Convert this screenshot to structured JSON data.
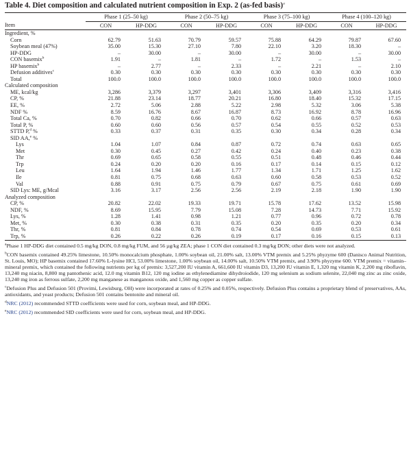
{
  "title": {
    "label": "Table 4.",
    "text": "Diet composition and calculated nutrient composition in Exp. 2 (as-fed basis)",
    "sup": "a"
  },
  "header": {
    "item": "Item",
    "phases": [
      "Phase 1 (25–50 kg)",
      "Phase 2 (50–75 kg)",
      "Phase 3 (75–100 kg)",
      "Phase 4 (100–120 kg)"
    ],
    "diet_con": "CON",
    "diet_hp": "HP-DDG"
  },
  "rows": [
    {
      "label": "Ingredient, %",
      "indent": 0,
      "values": []
    },
    {
      "label": "Corn",
      "indent": 1,
      "values": [
        "62.79",
        "51.63",
        "70.79",
        "59.57",
        "75.88",
        "64.29",
        "79.87",
        "67.60"
      ]
    },
    {
      "label": "Soybean meal (47%)",
      "indent": 1,
      "values": [
        "35.00",
        "15.30",
        "27.10",
        "7.80",
        "22.10",
        "3.20",
        "18.30",
        "–"
      ]
    },
    {
      "label": "HP-DDG",
      "indent": 1,
      "values": [
        "–",
        "30.00",
        "–",
        "30.00",
        "–",
        "30.00",
        "–",
        "30.00"
      ]
    },
    {
      "label": "CON basemix",
      "sup": "b",
      "indent": 1,
      "values": [
        "1.91",
        "–",
        "1.81",
        "–",
        "1.72",
        "–",
        "1.53",
        "–"
      ]
    },
    {
      "label": "HP basemix",
      "sup": "b",
      "indent": 1,
      "values": [
        "–",
        "2.77",
        "–",
        "2.33",
        "–",
        "2.21",
        "–",
        "2.10"
      ]
    },
    {
      "label": "Defusion additives",
      "sup": "c",
      "indent": 1,
      "values": [
        "0.30",
        "0.30",
        "0.30",
        "0.30",
        "0.30",
        "0.30",
        "0.30",
        "0.30"
      ]
    },
    {
      "label": "Total",
      "indent": 1,
      "values": [
        "100.0",
        "100.0",
        "100.0",
        "100.0",
        "100.0",
        "100.0",
        "100.0",
        "100.0"
      ]
    },
    {
      "label": "Calculated composition",
      "indent": 0,
      "values": []
    },
    {
      "label": "ME, kcal/kg",
      "indent": 1,
      "values": [
        "3,286",
        "3,379",
        "3,297",
        "3,401",
        "3,306",
        "3,409",
        "3,316",
        "3,416"
      ]
    },
    {
      "label": "CP, %",
      "indent": 1,
      "values": [
        "21.88",
        "23.14",
        "18.77",
        "20.21",
        "16.80",
        "18.40",
        "15.32",
        "17.15"
      ]
    },
    {
      "label": "EE, %",
      "indent": 1,
      "values": [
        "2.72",
        "5.06",
        "2.88",
        "5.22",
        "2.98",
        "5.32",
        "3.06",
        "5.38"
      ]
    },
    {
      "label": "NDF %",
      "indent": 1,
      "values": [
        "8.59",
        "16.76",
        "8.67",
        "16.87",
        "8.73",
        "16.92",
        "8.78",
        "16.96"
      ]
    },
    {
      "label": "Total Ca, %",
      "indent": 1,
      "values": [
        "0.70",
        "0.82",
        "0.66",
        "0.70",
        "0.62",
        "0.66",
        "0.57",
        "0.63"
      ]
    },
    {
      "label": "Total P, %",
      "indent": 1,
      "values": [
        "0.60",
        "0.60",
        "0.56",
        "0.57",
        "0.54",
        "0.55",
        "0.52",
        "0.53"
      ]
    },
    {
      "label": "STTD P,",
      "sup": "d",
      "label_tail": " %",
      "indent": 1,
      "values": [
        "0.33",
        "0.37",
        "0.31",
        "0.35",
        "0.30",
        "0.34",
        "0.28",
        "0.34"
      ]
    },
    {
      "label": "SID AA,",
      "sup": "e",
      "label_tail": " %",
      "indent": 1,
      "values": []
    },
    {
      "label": "Lys",
      "indent": 2,
      "values": [
        "1.04",
        "1.07",
        "0.84",
        "0.87",
        "0.72",
        "0.74",
        "0.63",
        "0.65"
      ]
    },
    {
      "label": "Met",
      "indent": 2,
      "values": [
        "0.30",
        "0.45",
        "0.27",
        "0.42",
        "0.24",
        "0.40",
        "0.23",
        "0.38"
      ]
    },
    {
      "label": "Thr",
      "indent": 2,
      "values": [
        "0.69",
        "0.65",
        "0.58",
        "0.55",
        "0.51",
        "0.48",
        "0.46",
        "0.44"
      ]
    },
    {
      "label": "Trp",
      "indent": 2,
      "values": [
        "0.24",
        "0.20",
        "0.20",
        "0.16",
        "0.17",
        "0.14",
        "0.15",
        "0.12"
      ]
    },
    {
      "label": "Leu",
      "indent": 2,
      "values": [
        "1.64",
        "1.94",
        "1.46",
        "1.77",
        "1.34",
        "1.71",
        "1.25",
        "1.62"
      ]
    },
    {
      "label": "Ile",
      "indent": 2,
      "values": [
        "0.81",
        "0.75",
        "0.68",
        "0.63",
        "0.60",
        "0.58",
        "0.53",
        "0.52"
      ]
    },
    {
      "label": "Val",
      "indent": 2,
      "values": [
        "0.88",
        "0.91",
        "0.75",
        "0.79",
        "0.67",
        "0.75",
        "0.61",
        "0.69"
      ]
    },
    {
      "label": "SID Lys: ME, g/Mcal",
      "indent": 1,
      "values": [
        "3.16",
        "3.17",
        "2.56",
        "2.56",
        "2.19",
        "2.18",
        "1.90",
        "1.90"
      ]
    },
    {
      "label": "Analyzed composition",
      "indent": 0,
      "values": []
    },
    {
      "label": "CP, %",
      "indent": 1,
      "values": [
        "20.82",
        "22.02",
        "19.33",
        "19.71",
        "15.78",
        "17.62",
        "13.52",
        "15.98"
      ]
    },
    {
      "label": "NDF, %",
      "indent": 1,
      "values": [
        "8.69",
        "15.95",
        "7.79",
        "15.08",
        "7.28",
        "14.73",
        "7.71",
        "15.92"
      ]
    },
    {
      "label": "Lys, %",
      "indent": 1,
      "values": [
        "1.28",
        "1.41",
        "0.98",
        "1.21",
        "0.77",
        "0.96",
        "0.72",
        "0.78"
      ]
    },
    {
      "label": "Met, %",
      "indent": 1,
      "values": [
        "0.30",
        "0.38",
        "0.31",
        "0.35",
        "0.20",
        "0.35",
        "0.20",
        "0.34"
      ]
    },
    {
      "label": "Thr, %",
      "indent": 1,
      "values": [
        "0.81",
        "0.84",
        "0.78",
        "0.74",
        "0.54",
        "0.69",
        "0.53",
        "0.61"
      ]
    },
    {
      "label": "Trp, %",
      "indent": 1,
      "values": [
        "0.26",
        "0.22",
        "0.26",
        "0.19",
        "0.17",
        "0.16",
        "0.15",
        "0.13"
      ]
    }
  ],
  "footnotes": [
    {
      "mark": "a",
      "text": "Phase 1 HP-DDG diet contained 0.5 mg/kg DON, 0.8 mg/kg FUM, and 56 µg/kg ZEA; phase 1 CON diet contained 0.3 mg/kg DON; other diets were not analyzed."
    },
    {
      "mark": "b",
      "text": "CON basemix contained 49.25% limestone, 10.50% monocalcium phosphate, 1.00% soybean oil, 21.00% salt, 13.00% VTM premix and 5.25% phyzyme 600 (Danisco Animal Nutrition, St. Louis, MO); HP basemix contained 17.60% L-lysine HCl, 53.00% limestone, 1.00% soybean oil, 14.00% salt, 10.50% VTM premix, and 3.90% phyzyme 600. VTM premix = vitamin–mineral premix, which contained the following nutrients per kg of premix: 3,527,200 IU vitamin A, 661,600 IU vitamin D3, 13,200 IU vitamin E, 1,320 mg vitamin K, 2,200 mg riboflavin, 13,240 mg niacin, 8,800 mg pantothenic acid, 12.0 mg vitamin B12, 120 mg iodine as ethylenediamine dihydroiodide, 120 mg selenium as sodium selenite, 22,040 mg zinc as zinc oxide, 13,240 mg iron as ferrous sulfate, 2,200 mg manganese as manganous oxide, and 1,560 mg copper as copper sulfate."
    },
    {
      "mark": "c",
      "text": "Defusion Plus and Defusion 501 (Provimi, Lewisburg, OH) were incorporated at rates of 0.25% and 0.05%, respectively. Defusion Plus contains a proprietary blend of preservatives, AAs, antioxidants, and yeast products; Defusion 501 contains bentonite and mineral oil."
    },
    {
      "mark": "d",
      "link": "NRC (2012)",
      "text": " recommended STTD coefficients were used for corn, soybean meal, and HP-DDG."
    },
    {
      "mark": "e",
      "link": "NRC (2012)",
      "text": " recommended SID coefficients were used for corn, soybean meal, and HP-DDG."
    }
  ]
}
